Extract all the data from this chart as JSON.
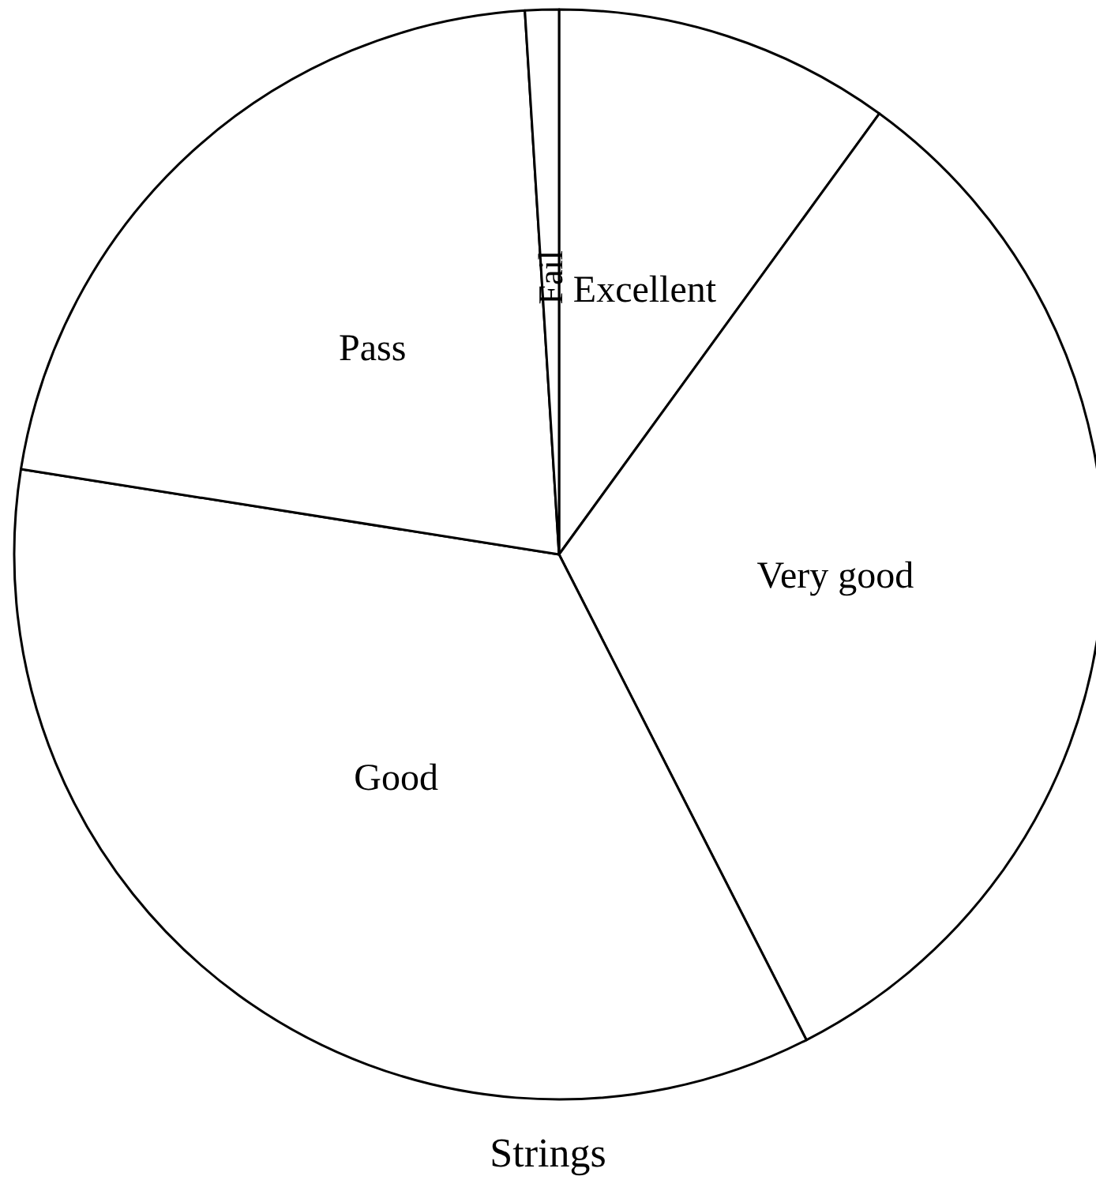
{
  "chart_data": {
    "type": "pie",
    "title": "Strings",
    "categories": [
      "Excellent",
      "Very good",
      "Good",
      "Pass",
      "Fail"
    ],
    "values": [
      10,
      32.5,
      35,
      21.5,
      1
    ],
    "colors": [
      "#ffffff",
      "#ffffff",
      "#ffffff",
      "#ffffff",
      "#ffffff"
    ]
  }
}
